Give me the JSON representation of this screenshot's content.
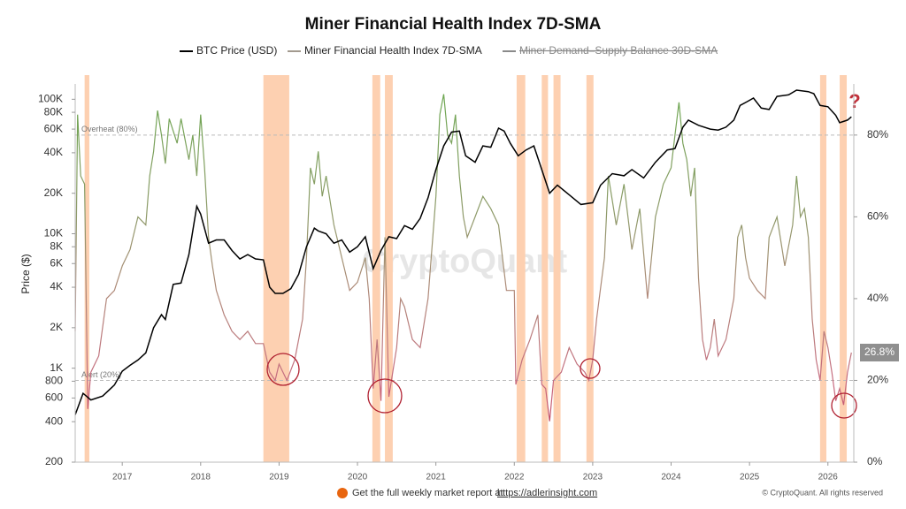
{
  "chart_data": {
    "type": "line",
    "title": "Miner Financial Health Index 7D-SMA",
    "ylabel": "Price ($)",
    "watermark": "CryptoQuant",
    "log_y": true,
    "xlim": [
      2016.4,
      2026.33
    ],
    "xticks": [
      2017,
      2018,
      2019,
      2020,
      2021,
      2022,
      2023,
      2024,
      2025,
      2026
    ],
    "ylim": [
      200,
      130000
    ],
    "yticks": [
      200,
      400,
      600,
      800,
      {
        "value": 1000,
        "label": "1K"
      },
      {
        "value": 2000,
        "label": "2K"
      },
      {
        "value": 4000,
        "label": "4K"
      },
      {
        "value": 6000,
        "label": "6K"
      },
      {
        "value": 8000,
        "label": "8K"
      },
      {
        "value": 10000,
        "label": "10K"
      },
      {
        "value": 20000,
        "label": "20K"
      },
      {
        "value": 40000,
        "label": "40K"
      },
      {
        "value": 60000,
        "label": "60K"
      },
      {
        "value": 80000,
        "label": "80K"
      },
      {
        "value": 100000,
        "label": "100K"
      }
    ],
    "y2lim": [
      0,
      92.5
    ],
    "y2ticks": [
      {
        "value": 0,
        "label": "0%"
      },
      {
        "value": 20,
        "label": "20%"
      },
      {
        "value": 40,
        "label": "40%"
      },
      {
        "value": 60,
        "label": "60%"
      },
      {
        "value": 80,
        "label": "80%"
      }
    ],
    "highlight_color": "#fdd0b1",
    "highlight_ranges": [
      [
        2016.52,
        2016.58
      ],
      [
        2018.8,
        2019.13
      ],
      [
        2020.19,
        2020.29
      ],
      [
        2020.35,
        2020.45
      ],
      [
        2022.03,
        2022.14
      ],
      [
        2022.35,
        2022.43
      ],
      [
        2022.5,
        2022.59
      ],
      [
        2022.92,
        2023.01
      ],
      [
        2025.9,
        2025.98
      ],
      [
        2026.15,
        2026.24
      ]
    ],
    "reference_lines": [
      {
        "value": 80,
        "label": "Overheat (80%)"
      },
      {
        "value": 20,
        "label": "Alert (20%)"
      }
    ],
    "current_value": {
      "value": 26.8,
      "label": "26.8%"
    },
    "series": [
      {
        "name": "BTC Price (USD)",
        "color": "#000000",
        "x": [
          2016.4,
          2016.5,
          2016.6,
          2016.75,
          2016.9,
          2017.0,
          2017.1,
          2017.2,
          2017.3,
          2017.4,
          2017.5,
          2017.55,
          2017.65,
          2017.75,
          2017.85,
          2017.95,
          2018.0,
          2018.1,
          2018.2,
          2018.3,
          2018.4,
          2018.5,
          2018.6,
          2018.7,
          2018.8,
          2018.88,
          2018.95,
          2019.05,
          2019.15,
          2019.25,
          2019.35,
          2019.45,
          2019.5,
          2019.6,
          2019.7,
          2019.8,
          2019.9,
          2020.0,
          2020.1,
          2020.2,
          2020.3,
          2020.4,
          2020.5,
          2020.6,
          2020.7,
          2020.8,
          2020.9,
          2021.0,
          2021.1,
          2021.2,
          2021.3,
          2021.38,
          2021.5,
          2021.6,
          2021.7,
          2021.8,
          2021.87,
          2021.95,
          2022.05,
          2022.15,
          2022.25,
          2022.35,
          2022.45,
          2022.55,
          2022.7,
          2022.85,
          2023.0,
          2023.1,
          2023.25,
          2023.4,
          2023.5,
          2023.65,
          2023.8,
          2023.95,
          2024.05,
          2024.15,
          2024.22,
          2024.35,
          2024.5,
          2024.6,
          2024.7,
          2024.8,
          2024.88,
          2024.97,
          2025.05,
          2025.15,
          2025.25,
          2025.35,
          2025.5,
          2025.6,
          2025.75,
          2025.82,
          2025.9,
          2026.0,
          2026.1,
          2026.15,
          2026.25,
          2026.3
        ],
        "values": [
          450,
          650,
          580,
          620,
          750,
          950,
          1050,
          1150,
          1300,
          2000,
          2500,
          2300,
          4200,
          4300,
          7000,
          16000,
          14000,
          8500,
          9000,
          9000,
          7500,
          6500,
          7000,
          6500,
          6400,
          4000,
          3600,
          3600,
          3900,
          5000,
          8000,
          11000,
          10500,
          10000,
          8500,
          9000,
          7300,
          8000,
          9500,
          5500,
          7500,
          9500,
          9200,
          11500,
          10800,
          13000,
          18500,
          30000,
          45000,
          57000,
          58000,
          38000,
          34000,
          45000,
          44000,
          61000,
          58000,
          47000,
          38000,
          42000,
          45000,
          30000,
          20000,
          23000,
          19500,
          16500,
          17000,
          23000,
          28000,
          27000,
          30000,
          26000,
          34000,
          42000,
          43000,
          62000,
          70000,
          64000,
          60000,
          59000,
          62000,
          70000,
          90000,
          96000,
          102000,
          86000,
          84000,
          105000,
          108000,
          117000,
          114000,
          110000,
          90000,
          88000,
          76000,
          67000,
          70000,
          74000
        ]
      },
      {
        "name": "Miner Financial Health Index 7D-SMA",
        "color": "#a39a8f",
        "axis": "y2",
        "x": [
          2016.4,
          2016.43,
          2016.47,
          2016.52,
          2016.56,
          2016.6,
          2016.7,
          2016.8,
          2016.9,
          2017.0,
          2017.1,
          2017.2,
          2017.3,
          2017.35,
          2017.4,
          2017.45,
          2017.5,
          2017.55,
          2017.6,
          2017.7,
          2017.75,
          2017.85,
          2017.9,
          2017.95,
          2018.0,
          2018.05,
          2018.1,
          2018.15,
          2018.2,
          2018.3,
          2018.4,
          2018.5,
          2018.6,
          2018.7,
          2018.8,
          2018.88,
          2018.95,
          2019.0,
          2019.1,
          2019.2,
          2019.3,
          2019.35,
          2019.4,
          2019.45,
          2019.5,
          2019.55,
          2019.6,
          2019.7,
          2019.8,
          2019.9,
          2020.0,
          2020.1,
          2020.15,
          2020.2,
          2020.25,
          2020.3,
          2020.35,
          2020.4,
          2020.45,
          2020.5,
          2020.55,
          2020.6,
          2020.7,
          2020.8,
          2020.9,
          2021.0,
          2021.05,
          2021.1,
          2021.15,
          2021.2,
          2021.25,
          2021.3,
          2021.35,
          2021.4,
          2021.5,
          2021.6,
          2021.7,
          2021.8,
          2021.9,
          2022.0,
          2022.02,
          2022.1,
          2022.2,
          2022.3,
          2022.35,
          2022.4,
          2022.45,
          2022.5,
          2022.6,
          2022.7,
          2022.8,
          2022.9,
          2022.95,
          2023.0,
          2023.05,
          2023.15,
          2023.2,
          2023.3,
          2023.4,
          2023.5,
          2023.6,
          2023.7,
          2023.8,
          2023.9,
          2024.0,
          2024.05,
          2024.1,
          2024.15,
          2024.2,
          2024.25,
          2024.3,
          2024.35,
          2024.4,
          2024.45,
          2024.5,
          2024.55,
          2024.6,
          2024.7,
          2024.8,
          2024.85,
          2024.9,
          2024.95,
          2025.0,
          2025.1,
          2025.2,
          2025.25,
          2025.35,
          2025.45,
          2025.55,
          2025.6,
          2025.65,
          2025.7,
          2025.75,
          2025.8,
          2025.85,
          2025.9,
          2025.95,
          2026.0,
          2026.05,
          2026.1,
          2026.15,
          2026.2,
          2026.25,
          2026.3
        ],
        "values": [
          32,
          85,
          70,
          68,
          13,
          22,
          26,
          40,
          42,
          48,
          52,
          60,
          58,
          70,
          76,
          86,
          80,
          73,
          84,
          78,
          84,
          74,
          80,
          70,
          85,
          72,
          55,
          48,
          42,
          36,
          32,
          30,
          32,
          29,
          29,
          22,
          20,
          24,
          20,
          25,
          35,
          50,
          72,
          68,
          76,
          65,
          70,
          58,
          50,
          42,
          44,
          50,
          40,
          18,
          30,
          15,
          55,
          16,
          22,
          28,
          40,
          38,
          30,
          28,
          40,
          65,
          85,
          90,
          80,
          78,
          85,
          70,
          60,
          55,
          60,
          65,
          62,
          58,
          42,
          42,
          19,
          25,
          30,
          36,
          19,
          18,
          10,
          20,
          22,
          28,
          24,
          22,
          20,
          25,
          35,
          50,
          70,
          58,
          68,
          52,
          62,
          40,
          60,
          68,
          72,
          80,
          88,
          78,
          74,
          65,
          72,
          45,
          30,
          25,
          28,
          35,
          26,
          30,
          40,
          55,
          58,
          50,
          45,
          42,
          40,
          55,
          60,
          48,
          58,
          70,
          60,
          62,
          55,
          35,
          25,
          20,
          32,
          28,
          22,
          15,
          18,
          14,
          22,
          26.8
        ]
      },
      {
        "name": "Miner Demand–Supply Balance 30D-SMA",
        "color": "#8a8a8a",
        "hidden": true
      }
    ],
    "footer": {
      "text": "Get the full weekly market report at",
      "link": "https://adlerinsight.com",
      "copyright": "© CryptoQuant. All rights reserved"
    }
  }
}
